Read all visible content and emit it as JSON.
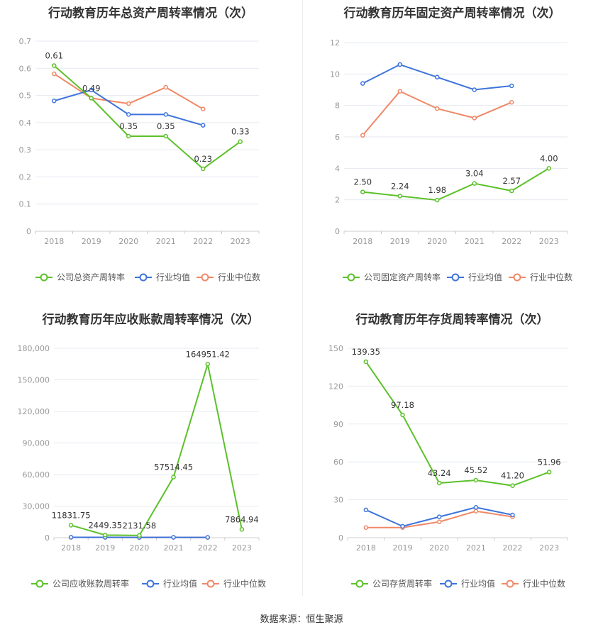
{
  "source": "数据来源：恒生聚源",
  "colors": {
    "company": "#5cc12a",
    "avg": "#3d74db",
    "median": "#f08866",
    "grid": "#e6e9f0",
    "axis": "#999999",
    "text": "#333333"
  },
  "chart_data": [
    {
      "type": "line",
      "title": "行动教育历年总资产周转率情况（次）",
      "categories": [
        "2018",
        "2019",
        "2020",
        "2021",
        "2022",
        "2023"
      ],
      "yticks": [
        "0",
        "0.1",
        "0.2",
        "0.3",
        "0.4",
        "0.5",
        "0.6",
        "0.7"
      ],
      "ylim": [
        0,
        0.7
      ],
      "grid": true,
      "legend_position": "bottom",
      "series": [
        {
          "name": "公司总资产周转率",
          "role": "company",
          "values": [
            0.61,
            0.49,
            0.35,
            0.35,
            0.23,
            0.33
          ],
          "labels": [
            "0.61",
            "0.49",
            "0.35",
            "0.35",
            "0.23",
            "0.33"
          ]
        },
        {
          "name": "行业均值",
          "role": "avg",
          "values": [
            0.48,
            0.52,
            0.43,
            0.43,
            0.39,
            null
          ]
        },
        {
          "name": "行业中位数",
          "role": "median",
          "values": [
            0.58,
            0.49,
            0.47,
            0.53,
            0.45,
            null
          ]
        }
      ]
    },
    {
      "type": "line",
      "title": "行动教育历年固定资产周转率情况（次）",
      "categories": [
        "2018",
        "2019",
        "2020",
        "2021",
        "2022",
        "2023"
      ],
      "yticks": [
        "0",
        "2",
        "4",
        "6",
        "8",
        "10",
        "12"
      ],
      "ylim": [
        0,
        12
      ],
      "grid": true,
      "legend_position": "bottom",
      "series": [
        {
          "name": "公司固定资产周转率",
          "role": "company",
          "values": [
            2.5,
            2.24,
            1.98,
            3.04,
            2.57,
            4.0
          ],
          "labels": [
            "2.50",
            "2.24",
            "1.98",
            "3.04",
            "2.57",
            "4.00"
          ]
        },
        {
          "name": "行业均值",
          "role": "avg",
          "values": [
            9.4,
            10.6,
            9.8,
            9.0,
            9.25,
            null
          ]
        },
        {
          "name": "行业中位数",
          "role": "median",
          "values": [
            6.1,
            8.9,
            7.8,
            7.2,
            8.2,
            null
          ]
        }
      ]
    },
    {
      "type": "line",
      "title": "行动教育历年应收账款周转率情况（次）",
      "categories": [
        "2018",
        "2019",
        "2020",
        "2021",
        "2022",
        "2023"
      ],
      "yticks": [
        "0",
        "30,000",
        "60,000",
        "90,000",
        "120,000",
        "150,000",
        "180,000"
      ],
      "ylim": [
        0,
        180000
      ],
      "grid": true,
      "legend_position": "bottom",
      "series": [
        {
          "name": "公司应收账款周转率",
          "role": "company",
          "values": [
            11831.75,
            2449.35,
            2131.58,
            57514.45,
            164951.42,
            7864.94
          ],
          "labels": [
            "11831.75",
            "2449.35",
            "2131.58",
            "57514.45",
            "164951.42",
            "7864.94"
          ]
        },
        {
          "name": "行业均值",
          "role": "avg",
          "values": [
            350,
            300,
            250,
            300,
            250,
            null
          ]
        },
        {
          "name": "行业中位数",
          "role": "median",
          "values": [
            300,
            250,
            200,
            250,
            200,
            null
          ]
        }
      ]
    },
    {
      "type": "line",
      "title": "行动教育历年存货周转率情况（次）",
      "categories": [
        "2018",
        "2019",
        "2020",
        "2021",
        "2022",
        "2023"
      ],
      "yticks": [
        "0",
        "30",
        "60",
        "90",
        "120",
        "150"
      ],
      "ylim": [
        0,
        150
      ],
      "grid": true,
      "legend_position": "bottom",
      "series": [
        {
          "name": "公司存货周转率",
          "role": "company",
          "values": [
            139.35,
            97.18,
            43.24,
            45.52,
            41.2,
            51.96
          ],
          "labels": [
            "139.35",
            "97.18",
            "43.24",
            "45.52",
            "41.20",
            "51.96"
          ]
        },
        {
          "name": "行业均值",
          "role": "avg",
          "values": [
            22,
            9,
            16.5,
            24,
            18,
            null
          ]
        },
        {
          "name": "行业中位数",
          "role": "median",
          "values": [
            8,
            8,
            12.5,
            21,
            16.5,
            null
          ]
        }
      ]
    }
  ]
}
